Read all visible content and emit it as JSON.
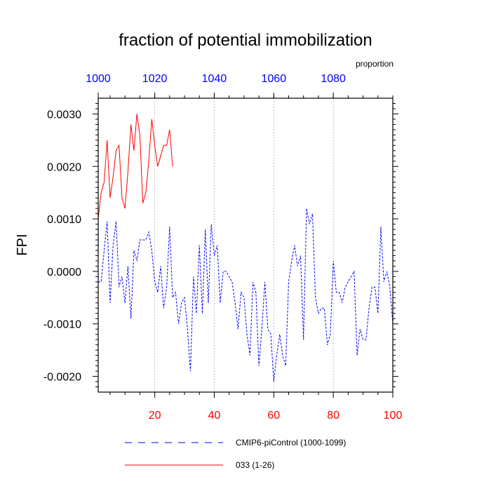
{
  "chart_data": {
    "type": "line",
    "title": "fraction of potential immobilization",
    "ylabel": "FPI",
    "top_axis_label": "proportion",
    "xlim": [
      1,
      100
    ],
    "ylim": [
      -0.0023,
      0.0033
    ],
    "bottom_ticks": [
      20,
      40,
      60,
      80,
      100
    ],
    "bottom_tick_labels": [
      "20",
      "40",
      "60",
      "80",
      "100"
    ],
    "top_ticks": [
      1,
      20,
      40,
      60,
      80
    ],
    "top_tick_labels": [
      "1000",
      "1020",
      "1040",
      "1060",
      "1080"
    ],
    "y_ticks": [
      0.003,
      0.002,
      0.001,
      0.0,
      -0.001,
      -0.002
    ],
    "y_tick_labels": [
      "0.0030",
      "0.0020",
      "0.0010",
      "0.0000",
      "-0.0010",
      "-0.0020"
    ],
    "grid_x": true,
    "legend_position": "bottom",
    "series": [
      {
        "name": "CMIP6-piControl (1000-1099)",
        "color": "#0000ff",
        "dash": "dashed",
        "x": [
          1,
          2,
          3,
          4,
          5,
          6,
          7,
          8,
          9,
          10,
          11,
          12,
          13,
          14,
          15,
          16,
          17,
          18,
          19,
          20,
          21,
          22,
          23,
          24,
          25,
          26,
          27,
          28,
          29,
          30,
          31,
          32,
          33,
          34,
          35,
          36,
          37,
          38,
          39,
          40,
          41,
          42,
          43,
          44,
          45,
          46,
          47,
          48,
          49,
          50,
          51,
          52,
          53,
          54,
          55,
          56,
          57,
          58,
          59,
          60,
          61,
          62,
          63,
          64,
          65,
          66,
          67,
          68,
          69,
          70,
          71,
          72,
          73,
          74,
          75,
          76,
          77,
          78,
          79,
          80,
          81,
          82,
          83,
          84,
          85,
          86,
          87,
          88,
          89,
          90,
          91,
          92,
          93,
          94,
          95,
          96,
          97,
          98,
          99,
          100
        ],
        "y": [
          -0.0002,
          -0.0002,
          0.0004,
          0.00095,
          -0.0006,
          0.0005,
          0.00095,
          -0.0003,
          -0.0001,
          -0.0006,
          0.0001,
          -0.0009,
          0.0004,
          0.0002,
          0.0006,
          0.0006,
          0.0006,
          0.00075,
          0.0004,
          -0.0002,
          -0.0004,
          0.0001,
          -0.0007,
          -0.0003,
          0.00085,
          -0.0005,
          -0.0004,
          -0.001,
          -0.0006,
          -0.0005,
          -0.0011,
          -0.0019,
          -0.0001,
          -0.0008,
          0.0005,
          -0.0008,
          0.0008,
          -0.0006,
          0.0009,
          0.0003,
          0.0005,
          -0.0006,
          0.0,
          0.0,
          -0.0001,
          -0.0002,
          -0.0006,
          -0.0011,
          -0.0004,
          -0.0005,
          -0.0012,
          -0.0016,
          -0.0002,
          -0.0004,
          -0.0018,
          -0.0011,
          -0.0002,
          -0.0011,
          -0.0012,
          -0.0021,
          -0.0016,
          -0.0012,
          -0.0016,
          -0.0018,
          -0.0002,
          0.0002,
          0.0005,
          0.0001,
          0.0003,
          -0.0013,
          0.0012,
          0.0009,
          0.0011,
          -0.0005,
          -0.0008,
          -0.0007,
          -0.0007,
          -0.0014,
          -0.0012,
          0.0002,
          -0.0004,
          -0.0004,
          -0.0006,
          -0.0003,
          -0.0002,
          -0.0001,
          0.0,
          -0.0016,
          -0.0011,
          -0.0013,
          -0.0013,
          -0.0007,
          -0.0003,
          -0.0003,
          -0.0008,
          0.00085,
          -0.0002,
          0.0,
          -0.0003,
          -0.001
        ]
      },
      {
        "name": "033 (1-26)",
        "color": "#ff0000",
        "dash": "solid",
        "x": [
          1,
          2,
          3,
          4,
          5,
          6,
          7,
          8,
          9,
          10,
          11,
          12,
          13,
          14,
          15,
          16,
          17,
          18,
          19,
          20,
          21,
          22,
          23,
          24,
          25,
          26
        ],
        "y": [
          0.001,
          0.0015,
          0.0017,
          0.0025,
          0.0014,
          0.0018,
          0.0023,
          0.0024,
          0.0014,
          0.0012,
          0.0019,
          0.0028,
          0.0023,
          0.003,
          0.0026,
          0.0013,
          0.0015,
          0.0021,
          0.0029,
          0.0024,
          0.002,
          0.0022,
          0.0024,
          0.0024,
          0.0027,
          0.002
        ]
      }
    ]
  }
}
